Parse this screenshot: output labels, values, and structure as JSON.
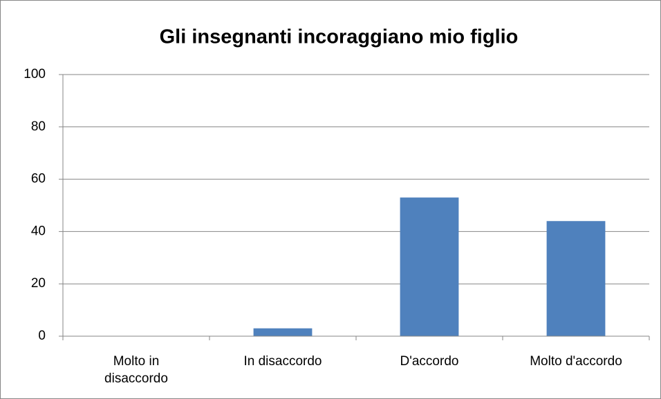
{
  "chart_data": {
    "type": "bar",
    "title": "Gli insegnanti incoraggiano mio figlio",
    "categories": [
      "Molto in disaccordo",
      "In disaccordo",
      "D'accordo",
      "Molto d'accordo"
    ],
    "values": [
      0,
      3,
      53,
      44
    ],
    "color": "#4f81bd",
    "ylim": [
      0,
      100
    ],
    "yticks": [
      0,
      20,
      40,
      60,
      80,
      100
    ],
    "grid": true
  }
}
